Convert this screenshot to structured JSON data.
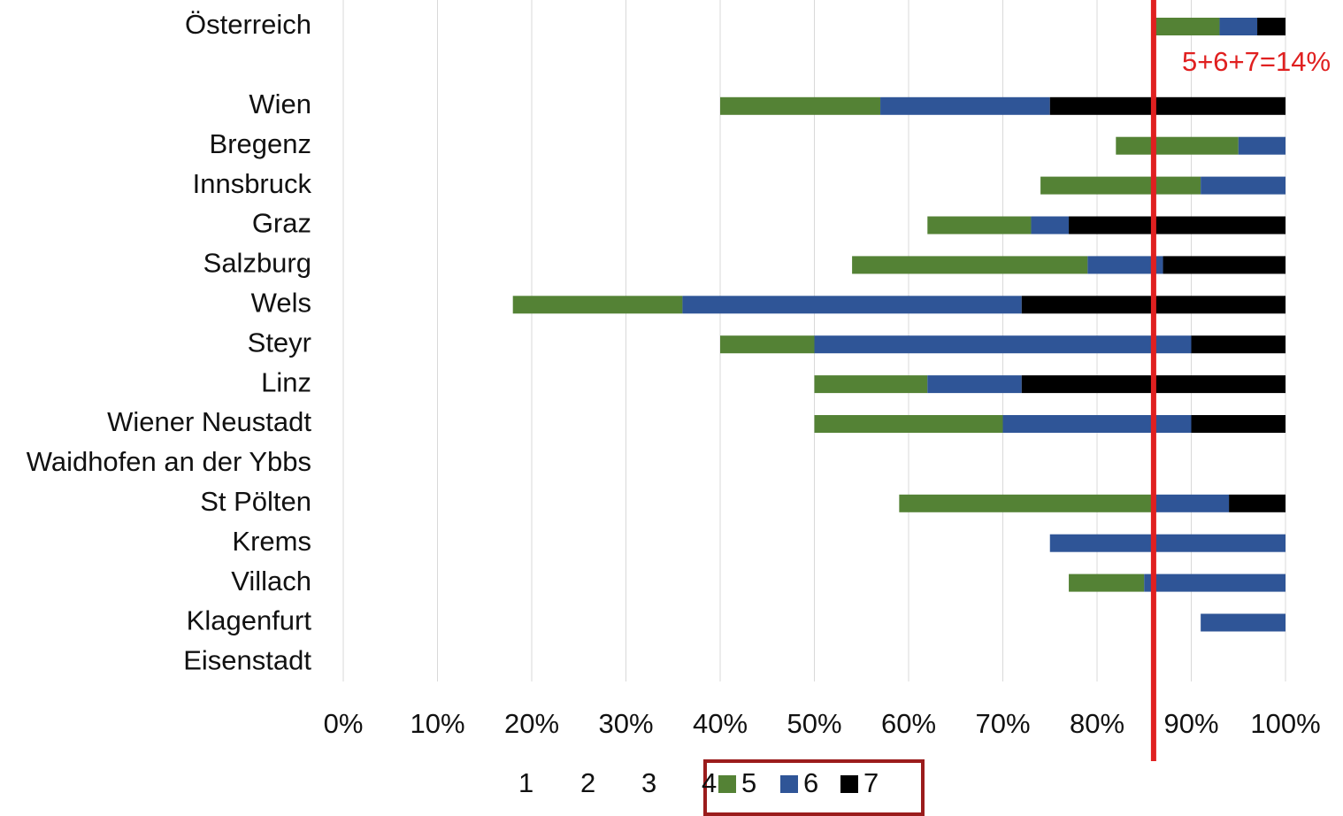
{
  "chart_data": {
    "type": "stacked_barh",
    "categories": [
      "Österreich",
      null,
      "Wien",
      "Bregenz",
      "Innsbruck",
      "Graz",
      "Salzburg",
      "Wels",
      "Steyr",
      "Linz",
      "Wiener Neustadt",
      "Waidhofen an der Ybbs",
      "St Pölten",
      "Krems",
      "Villach",
      "Klagenfurt",
      "Eisenstadt"
    ],
    "series": [
      {
        "name": "1",
        "color": "none",
        "values": [
          0,
          null,
          0,
          0,
          0,
          0,
          0,
          0,
          0,
          0,
          0,
          null,
          0,
          0,
          0,
          0,
          null
        ]
      },
      {
        "name": "2",
        "color": "none",
        "values": [
          0,
          null,
          0,
          0,
          0,
          0,
          0,
          0,
          0,
          0,
          0,
          null,
          0,
          0,
          0,
          0,
          null
        ]
      },
      {
        "name": "3",
        "color": "none",
        "values": [
          0,
          null,
          0,
          0,
          0,
          0,
          0,
          0,
          0,
          0,
          0,
          null,
          0,
          0,
          0,
          0,
          null
        ]
      },
      {
        "name": "4",
        "color": "none",
        "values": [
          86,
          null,
          40,
          82,
          74,
          62,
          54,
          18,
          40,
          50,
          50,
          null,
          59,
          75,
          77,
          91,
          null
        ]
      },
      {
        "name": "5",
        "color": "#548235",
        "values": [
          7,
          null,
          17,
          13,
          17,
          11,
          25,
          18,
          10,
          12,
          20,
          null,
          27,
          0,
          8,
          0,
          null
        ]
      },
      {
        "name": "6",
        "color": "#2f5597",
        "values": [
          4,
          null,
          18,
          5,
          9,
          4,
          8,
          36,
          40,
          10,
          20,
          null,
          8,
          25,
          15,
          9,
          null
        ]
      },
      {
        "name": "7",
        "color": "#000000",
        "values": [
          3,
          null,
          25,
          0,
          0,
          23,
          13,
          28,
          10,
          28,
          10,
          null,
          6,
          0,
          0,
          0,
          null
        ]
      }
    ],
    "xlim": [
      0,
      100
    ],
    "xticks": [
      {
        "value": 0,
        "label": "0%"
      },
      {
        "value": 10,
        "label": "10%"
      },
      {
        "value": 20,
        "label": "20%"
      },
      {
        "value": 30,
        "label": "30%"
      },
      {
        "value": 40,
        "label": "40%"
      },
      {
        "value": 50,
        "label": "50%"
      },
      {
        "value": 60,
        "label": "60%"
      },
      {
        "value": 70,
        "label": "70%"
      },
      {
        "value": 80,
        "label": "80%"
      },
      {
        "value": 90,
        "label": "90%"
      },
      {
        "value": 100,
        "label": "100%"
      }
    ],
    "grid": true,
    "reference_line": {
      "value": 86,
      "color": "#e02020",
      "label": "5+6+7=14%"
    },
    "legend": "bottom"
  }
}
